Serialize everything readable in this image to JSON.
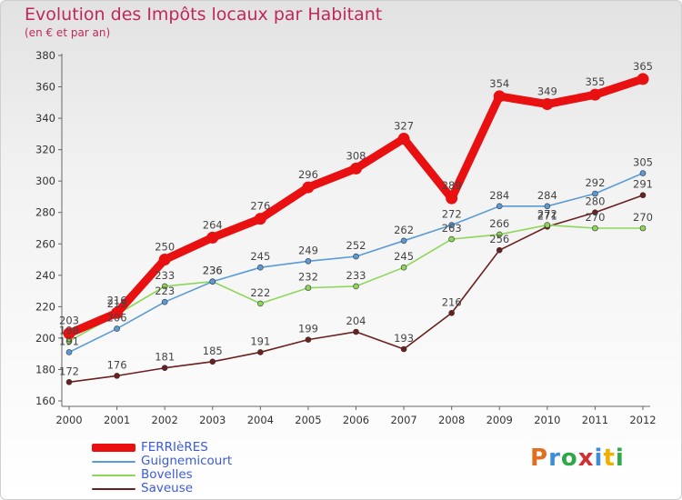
{
  "title": "Evolution des Impôts locaux par Habitant",
  "subtitle": "(en € et par an)",
  "logo_text": "Proxiti",
  "chart_data": {
    "type": "line",
    "title": "Evolution des Impôts locaux par Habitant",
    "subtitle": "(en € et par an)",
    "xlabel": "",
    "ylabel": "",
    "categories": [
      "2000",
      "2001",
      "2002",
      "2003",
      "2004",
      "2005",
      "2006",
      "2007",
      "2008",
      "2009",
      "2010",
      "2011",
      "2012"
    ],
    "ylim": [
      160,
      380
    ],
    "yticks": [
      160,
      180,
      200,
      220,
      240,
      260,
      280,
      300,
      320,
      340,
      360,
      380
    ],
    "grid": false,
    "legend_position": "bottom-left",
    "series": [
      {
        "name": "FERRIèRES",
        "color": "#e81010",
        "values": [
          203,
          216,
          250,
          264,
          276,
          296,
          308,
          327,
          289,
          354,
          349,
          355,
          365
        ]
      },
      {
        "name": "Guignemicourt",
        "color": "#5b9bd5",
        "values": [
          191,
          206,
          223,
          236,
          245,
          249,
          252,
          262,
          272,
          284,
          284,
          292,
          305
        ]
      },
      {
        "name": "Bovelles",
        "color": "#8ed65a",
        "values": [
          198,
          215,
          233,
          236,
          222,
          232,
          233,
          245,
          263,
          266,
          272,
          270,
          270
        ]
      },
      {
        "name": "Saveuse",
        "color": "#6b1f1f",
        "values": [
          172,
          176,
          181,
          185,
          191,
          199,
          204,
          193,
          216,
          256,
          271,
          280,
          291
        ]
      }
    ]
  }
}
